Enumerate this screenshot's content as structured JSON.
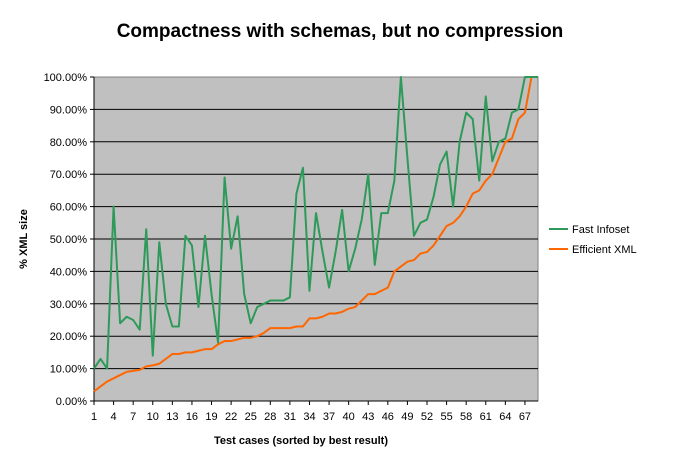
{
  "chart_data": {
    "type": "line",
    "title": "Compactness with schemas, but no compression",
    "xlabel": "Test cases (sorted by best result)",
    "ylabel": "% XML size",
    "ylim": [
      0,
      100
    ],
    "y_ticks": [
      "0.00%",
      "10.00%",
      "20.00%",
      "30.00%",
      "40.00%",
      "50.00%",
      "60.00%",
      "70.00%",
      "80.00%",
      "90.00%",
      "100.00%"
    ],
    "x_ticks": [
      "1",
      "4",
      "7",
      "10",
      "13",
      "16",
      "19",
      "22",
      "25",
      "28",
      "31",
      "34",
      "37",
      "40",
      "43",
      "46",
      "49",
      "52",
      "55",
      "58",
      "61",
      "64",
      "67"
    ],
    "x": [
      1,
      2,
      3,
      4,
      5,
      6,
      7,
      8,
      9,
      10,
      11,
      12,
      13,
      14,
      15,
      16,
      17,
      18,
      19,
      20,
      21,
      22,
      23,
      24,
      25,
      26,
      27,
      28,
      29,
      30,
      31,
      32,
      33,
      34,
      35,
      36,
      37,
      38,
      39,
      40,
      41,
      42,
      43,
      44,
      45,
      46,
      47,
      48,
      49,
      50,
      51,
      52,
      53,
      54,
      55,
      56,
      57,
      58,
      59,
      60,
      61,
      62,
      63,
      64,
      65,
      66,
      67,
      68,
      69
    ],
    "grid": true,
    "plot_background": "#c0c0c0",
    "legend_position": "right",
    "series": [
      {
        "name": "Fast Infoset",
        "color": "#2e9a5a",
        "values": [
          10,
          13,
          10,
          60,
          24,
          26,
          25,
          22,
          53,
          14,
          49,
          30,
          23,
          23,
          51,
          48,
          29,
          51,
          33,
          18,
          69,
          47,
          57,
          33,
          24,
          29,
          30,
          31,
          31,
          31,
          32,
          64,
          72,
          34,
          58,
          46,
          35,
          46,
          59,
          40,
          47,
          56,
          70,
          42,
          58,
          58,
          68,
          100,
          75,
          51,
          55,
          56,
          63,
          73,
          77,
          60,
          80,
          89,
          87,
          68,
          94,
          74,
          80,
          81,
          89,
          90,
          100,
          100,
          100
        ]
      },
      {
        "name": "Efficient XML",
        "color": "#ff6600",
        "values": [
          3,
          4.5,
          6,
          7,
          8,
          9,
          9.3,
          9.6,
          10.7,
          11,
          11.5,
          13,
          14.5,
          14.5,
          15,
          15,
          15.5,
          16,
          16,
          17.5,
          18.5,
          18.5,
          19,
          19.5,
          19.5,
          20,
          21,
          22.5,
          22.5,
          22.5,
          22.5,
          23,
          23,
          25.5,
          25.5,
          26,
          27,
          27,
          27.5,
          28.5,
          29,
          31,
          33,
          33,
          34,
          35,
          40,
          41.5,
          43,
          43.5,
          45.5,
          46,
          48,
          51,
          54,
          55,
          57,
          60,
          64,
          65,
          68,
          70,
          75,
          80,
          81,
          87,
          89,
          100,
          100
        ]
      }
    ]
  }
}
